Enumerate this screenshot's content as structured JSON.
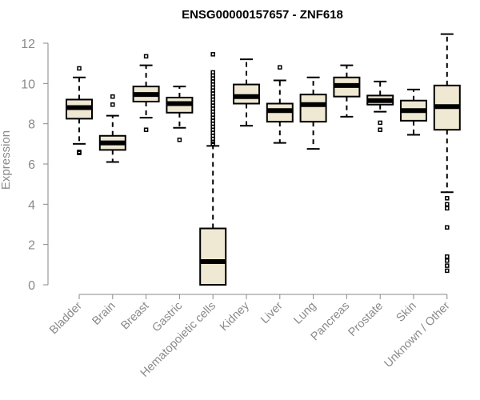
{
  "chart_data": {
    "type": "boxplot",
    "title": "ENSG00000157657 - ZNF618",
    "ylabel": "Expression",
    "xlabel": "",
    "ylim": [
      0,
      12
    ],
    "yticks": [
      0,
      2,
      4,
      6,
      8,
      10,
      12
    ],
    "grid": false,
    "colors": {
      "box_fill": "#efe8d2",
      "stroke": "#000000",
      "axis_text": "#8a8a8a"
    },
    "categories": [
      "Bladder",
      "Brain",
      "Breast",
      "Gastric",
      "Hematopoietic cells",
      "Kidney",
      "Liver",
      "Lung",
      "Pancreas",
      "Prostate",
      "Skin",
      "Unknown / Other"
    ],
    "boxes": [
      {
        "whisker_low": 7.0,
        "q1": 8.25,
        "median": 8.8,
        "q3": 9.2,
        "whisker_high": 10.3,
        "outliers": [
          10.75,
          6.6,
          6.55
        ]
      },
      {
        "whisker_low": 6.1,
        "q1": 6.7,
        "median": 7.05,
        "q3": 7.4,
        "whisker_high": 8.4,
        "outliers": [
          9.35,
          8.95
        ]
      },
      {
        "whisker_low": 8.3,
        "q1": 9.1,
        "median": 9.45,
        "q3": 9.85,
        "whisker_high": 10.9,
        "outliers": [
          11.35,
          7.7
        ]
      },
      {
        "whisker_low": 7.8,
        "q1": 8.55,
        "median": 9.0,
        "q3": 9.3,
        "whisker_high": 9.85,
        "outliers": [
          7.2
        ]
      },
      {
        "whisker_low": 0.0,
        "q1": 0.0,
        "median": 1.15,
        "q3": 2.8,
        "whisker_high": 6.9,
        "outliers": [
          11.45,
          10.55,
          10.4,
          10.25,
          10.1,
          9.95,
          9.8,
          9.65,
          9.5,
          9.35,
          9.2,
          9.05,
          8.9,
          8.75,
          8.6,
          8.45,
          8.3,
          8.15,
          8.0,
          7.85,
          7.7,
          7.55,
          7.4,
          7.25,
          7.1,
          7.0
        ]
      },
      {
        "whisker_low": 7.9,
        "q1": 9.0,
        "median": 9.35,
        "q3": 9.95,
        "whisker_high": 11.2,
        "outliers": []
      },
      {
        "whisker_low": 7.05,
        "q1": 8.1,
        "median": 8.65,
        "q3": 9.0,
        "whisker_high": 10.15,
        "outliers": [
          10.8
        ]
      },
      {
        "whisker_low": 6.75,
        "q1": 8.1,
        "median": 8.95,
        "q3": 9.45,
        "whisker_high": 10.3,
        "outliers": []
      },
      {
        "whisker_low": 8.35,
        "q1": 9.35,
        "median": 9.9,
        "q3": 10.3,
        "whisker_high": 10.9,
        "outliers": []
      },
      {
        "whisker_low": 8.6,
        "q1": 8.95,
        "median": 9.15,
        "q3": 9.4,
        "whisker_high": 10.1,
        "outliers": [
          8.05,
          7.7
        ]
      },
      {
        "whisker_low": 7.45,
        "q1": 8.15,
        "median": 8.65,
        "q3": 9.15,
        "whisker_high": 9.7,
        "outliers": []
      },
      {
        "whisker_low": 4.6,
        "q1": 7.7,
        "median": 8.85,
        "q3": 9.9,
        "whisker_high": 12.45,
        "outliers": [
          4.3,
          4.0,
          3.8,
          2.85,
          1.4,
          1.2,
          0.95,
          0.7
        ]
      }
    ]
  }
}
